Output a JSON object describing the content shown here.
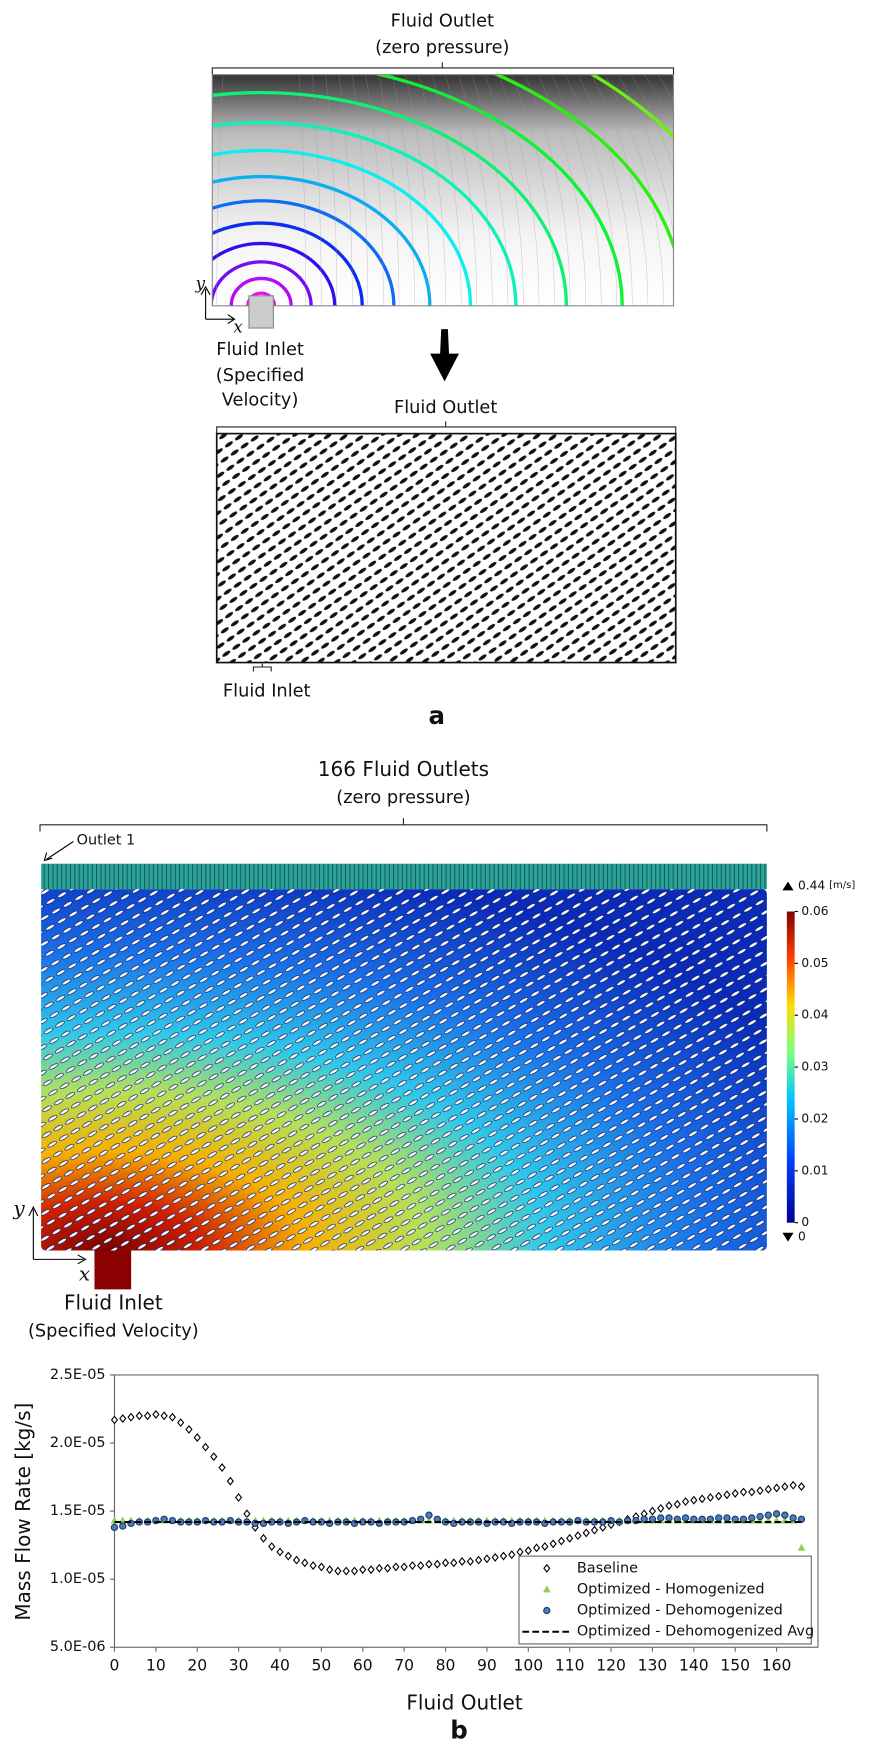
{
  "panel_a": {
    "top": {
      "title": "Fluid Outlet",
      "subtitle": "(zero pressure)",
      "axis_y": "y",
      "axis_x": "x",
      "inlet_label": [
        "Fluid Inlet",
        "(Specified",
        "Velocity)"
      ]
    },
    "bottom": {
      "outlet_label": "Fluid Outlet",
      "inlet_label": "Fluid Inlet"
    },
    "label": "a"
  },
  "panel_b": {
    "title": "166 Fluid Outlets",
    "subtitle": "(zero pressure)",
    "outlet_note": "Outlet 1",
    "axis_y": "y",
    "axis_x": "x",
    "inlet_label": [
      "Fluid Inlet",
      "(Specified Velocity)"
    ],
    "colorbar": {
      "unit": "[m/s]",
      "max_label": 0.44,
      "min_label": 0,
      "lim": [
        0,
        0.06
      ],
      "ticks": [
        0,
        0.01,
        0.02,
        0.03,
        0.04,
        0.05,
        0.06
      ]
    }
  },
  "chart_data": {
    "type": "scatter",
    "panel_label": "b",
    "x_label": "Fluid Outlet",
    "y_label": "Mass Flow Rate [kg/s]",
    "xlim": [
      0,
      170
    ],
    "xticks": [
      0,
      10,
      20,
      30,
      40,
      50,
      60,
      70,
      80,
      90,
      100,
      110,
      120,
      130,
      140,
      150,
      160
    ],
    "ylim": [
      5e-06,
      2.5e-05
    ],
    "yticks": [
      {
        "value": 5e-06,
        "label": "5.0E-06"
      },
      {
        "value": 1e-05,
        "label": "1.0E-05"
      },
      {
        "value": 1.5e-05,
        "label": "1.5E-05"
      },
      {
        "value": 2e-05,
        "label": "2.0E-05"
      },
      {
        "value": 2.5e-05,
        "label": "2.5E-05"
      }
    ],
    "grid": false,
    "legend": "lower right",
    "x": [
      0,
      2,
      4,
      6,
      8,
      10,
      12,
      14,
      16,
      18,
      20,
      22,
      24,
      26,
      28,
      30,
      32,
      34,
      36,
      38,
      40,
      42,
      44,
      46,
      48,
      50,
      52,
      54,
      56,
      58,
      60,
      62,
      64,
      66,
      68,
      70,
      72,
      74,
      76,
      78,
      80,
      82,
      84,
      86,
      88,
      90,
      92,
      94,
      96,
      98,
      100,
      102,
      104,
      106,
      108,
      110,
      112,
      114,
      116,
      118,
      120,
      122,
      124,
      126,
      128,
      130,
      132,
      134,
      136,
      138,
      140,
      142,
      144,
      146,
      148,
      150,
      152,
      154,
      156,
      158,
      160,
      162,
      164,
      166
    ],
    "series": [
      {
        "name": "Baseline",
        "color": "#000000",
        "marker": "diamond",
        "values": [
          2.17e-05,
          2.18e-05,
          2.19e-05,
          2.2e-05,
          2.2e-05,
          2.21e-05,
          2.2e-05,
          2.19e-05,
          2.15e-05,
          2.1e-05,
          2.04e-05,
          1.97e-05,
          1.9e-05,
          1.82e-05,
          1.72e-05,
          1.6e-05,
          1.48e-05,
          1.38e-05,
          1.3e-05,
          1.24e-05,
          1.2e-05,
          1.17e-05,
          1.14e-05,
          1.12e-05,
          1.1e-05,
          1.09e-05,
          1.07e-05,
          1.06e-05,
          1.06e-05,
          1.06e-05,
          1.07e-05,
          1.07e-05,
          1.08e-05,
          1.08e-05,
          1.09e-05,
          1.09e-05,
          1.1e-05,
          1.1e-05,
          1.11e-05,
          1.11e-05,
          1.12e-05,
          1.12e-05,
          1.13e-05,
          1.13e-05,
          1.14e-05,
          1.15e-05,
          1.16e-05,
          1.17e-05,
          1.18e-05,
          1.2e-05,
          1.21e-05,
          1.23e-05,
          1.24e-05,
          1.26e-05,
          1.28e-05,
          1.3e-05,
          1.32e-05,
          1.34e-05,
          1.36e-05,
          1.38e-05,
          1.4e-05,
          1.42e-05,
          1.44e-05,
          1.46e-05,
          1.48e-05,
          1.5e-05,
          1.52e-05,
          1.54e-05,
          1.55e-05,
          1.57e-05,
          1.58e-05,
          1.59e-05,
          1.6e-05,
          1.61e-05,
          1.62e-05,
          1.63e-05,
          1.64e-05,
          1.64e-05,
          1.65e-05,
          1.66e-05,
          1.67e-05,
          1.68e-05,
          1.69e-05,
          1.68e-05
        ]
      },
      {
        "name": "Optimized - Homogenized",
        "color": "#92d050",
        "marker": "triangle",
        "values": [
          1.43e-05,
          1.43e-05,
          1.43e-05,
          1.43e-05,
          1.43e-05,
          1.43e-05,
          1.43e-05,
          1.43e-05,
          1.43e-05,
          1.43e-05,
          1.43e-05,
          1.43e-05,
          1.43e-05,
          1.43e-05,
          1.43e-05,
          1.43e-05,
          1.43e-05,
          1.43e-05,
          1.43e-05,
          1.43e-05,
          1.43e-05,
          1.43e-05,
          1.43e-05,
          1.43e-05,
          1.43e-05,
          1.43e-05,
          1.43e-05,
          1.43e-05,
          1.43e-05,
          1.43e-05,
          1.43e-05,
          1.43e-05,
          1.43e-05,
          1.43e-05,
          1.43e-05,
          1.43e-05,
          1.43e-05,
          1.43e-05,
          1.43e-05,
          1.43e-05,
          1.43e-05,
          1.43e-05,
          1.43e-05,
          1.43e-05,
          1.43e-05,
          1.43e-05,
          1.43e-05,
          1.43e-05,
          1.43e-05,
          1.43e-05,
          1.43e-05,
          1.43e-05,
          1.43e-05,
          1.43e-05,
          1.43e-05,
          1.43e-05,
          1.43e-05,
          1.43e-05,
          1.43e-05,
          1.43e-05,
          1.43e-05,
          1.43e-05,
          1.43e-05,
          1.43e-05,
          1.43e-05,
          1.43e-05,
          1.43e-05,
          1.43e-05,
          1.43e-05,
          1.43e-05,
          1.43e-05,
          1.43e-05,
          1.43e-05,
          1.43e-05,
          1.43e-05,
          1.43e-05,
          1.43e-05,
          1.43e-05,
          1.43e-05,
          1.43e-05,
          1.43e-05,
          1.43e-05,
          1.43e-05,
          1.23e-05
        ]
      },
      {
        "name": "Optimized - Dehomogenized",
        "color": "#4a7ebb",
        "marker": "circle",
        "values": [
          1.38e-05,
          1.39e-05,
          1.41e-05,
          1.42e-05,
          1.42e-05,
          1.43e-05,
          1.44e-05,
          1.43e-05,
          1.42e-05,
          1.42e-05,
          1.42e-05,
          1.43e-05,
          1.42e-05,
          1.42e-05,
          1.43e-05,
          1.42e-05,
          1.42e-05,
          1.41e-05,
          1.41e-05,
          1.42e-05,
          1.42e-05,
          1.41e-05,
          1.42e-05,
          1.43e-05,
          1.42e-05,
          1.42e-05,
          1.41e-05,
          1.42e-05,
          1.42e-05,
          1.41e-05,
          1.42e-05,
          1.42e-05,
          1.41e-05,
          1.42e-05,
          1.42e-05,
          1.42e-05,
          1.43e-05,
          1.44e-05,
          1.47e-05,
          1.44e-05,
          1.42e-05,
          1.41e-05,
          1.42e-05,
          1.42e-05,
          1.42e-05,
          1.41e-05,
          1.42e-05,
          1.42e-05,
          1.41e-05,
          1.42e-05,
          1.42e-05,
          1.42e-05,
          1.41e-05,
          1.42e-05,
          1.42e-05,
          1.42e-05,
          1.43e-05,
          1.42e-05,
          1.42e-05,
          1.42e-05,
          1.43e-05,
          1.42e-05,
          1.43e-05,
          1.43e-05,
          1.44e-05,
          1.44e-05,
          1.45e-05,
          1.45e-05,
          1.44e-05,
          1.45e-05,
          1.44e-05,
          1.44e-05,
          1.44e-05,
          1.45e-05,
          1.45e-05,
          1.44e-05,
          1.44e-05,
          1.45e-05,
          1.46e-05,
          1.47e-05,
          1.48e-05,
          1.47e-05,
          1.45e-05,
          1.44e-05
        ]
      },
      {
        "name": "Optimized - Dehomogenized Avg",
        "color": "#000000",
        "marker": "dashed-line",
        "x": [
          0,
          166
        ],
        "values": [
          1.42e-05,
          1.42e-05
        ]
      }
    ]
  }
}
